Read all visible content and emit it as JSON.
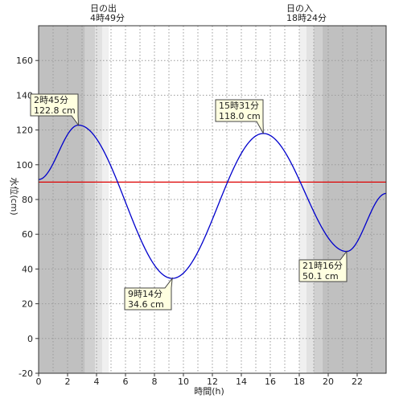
{
  "chart_data": {
    "type": "line",
    "title": "",
    "xlabel": "時間(h)",
    "ylabel": "水位(cm)",
    "xlim": [
      0,
      24
    ],
    "ylim": [
      -20,
      180
    ],
    "x_ticks": [
      0,
      2,
      4,
      6,
      8,
      10,
      12,
      14,
      16,
      18,
      20,
      22
    ],
    "x_tick_labels": [
      "0",
      "2",
      "4",
      "6",
      "8",
      "10",
      "12",
      "14",
      "16",
      "18",
      "20",
      "22"
    ],
    "y_ticks": [
      -20,
      0,
      20,
      40,
      60,
      80,
      100,
      120,
      140,
      160
    ],
    "y_tick_labels": [
      "-20",
      "0",
      "20",
      "40",
      "60",
      "80",
      "100",
      "120",
      "140",
      "160"
    ],
    "grid": true,
    "colors": {
      "curve": "#0000cc",
      "reference_line": "#dd0000",
      "night": "#c0c0c0",
      "twilight_dark": "#d0d0d0",
      "twilight_mid": "#e2e2e2",
      "twilight_light": "#f0f0f0",
      "day": "#ffffff",
      "callout_fill": "#ffffe0"
    },
    "reference_line": {
      "y": 90
    },
    "extremes": [
      {
        "x": 2.75,
        "y": 122.8,
        "time": "2時45分",
        "level": "122.8 cm",
        "kind": "high"
      },
      {
        "x": 9.23,
        "y": 34.6,
        "time": "9時14分",
        "level": "34.6 cm",
        "kind": "low"
      },
      {
        "x": 15.52,
        "y": 118.0,
        "time": "15時31分",
        "level": "118.0 cm",
        "kind": "high"
      },
      {
        "x": 21.27,
        "y": 50.1,
        "time": "21時16分",
        "level": "50.1 cm",
        "kind": "low"
      }
    ],
    "series": [
      {
        "x": [
          0,
          24
        ],
        "y": [
          91.5,
          83.5
        ]
      }
    ],
    "sunrise": {
      "label": "日の出",
      "time": "4時49分",
      "x": 4.82
    },
    "sunset": {
      "label": "日の入",
      "time": "18時24分",
      "x": 18.4
    },
    "shading_bands": [
      {
        "x0": 0,
        "x1": 3.2,
        "shade": "night"
      },
      {
        "x0": 3.2,
        "x1": 3.9,
        "shade": "twilight_dark"
      },
      {
        "x0": 3.9,
        "x1": 4.4,
        "shade": "twilight_mid"
      },
      {
        "x0": 4.4,
        "x1": 4.85,
        "shade": "twilight_light"
      },
      {
        "x0": 18.0,
        "x1": 18.5,
        "shade": "twilight_light"
      },
      {
        "x0": 18.5,
        "x1": 19.0,
        "shade": "twilight_mid"
      },
      {
        "x0": 19.0,
        "x1": 19.6,
        "shade": "twilight_dark"
      },
      {
        "x0": 19.6,
        "x1": 24,
        "shade": "night"
      }
    ]
  }
}
